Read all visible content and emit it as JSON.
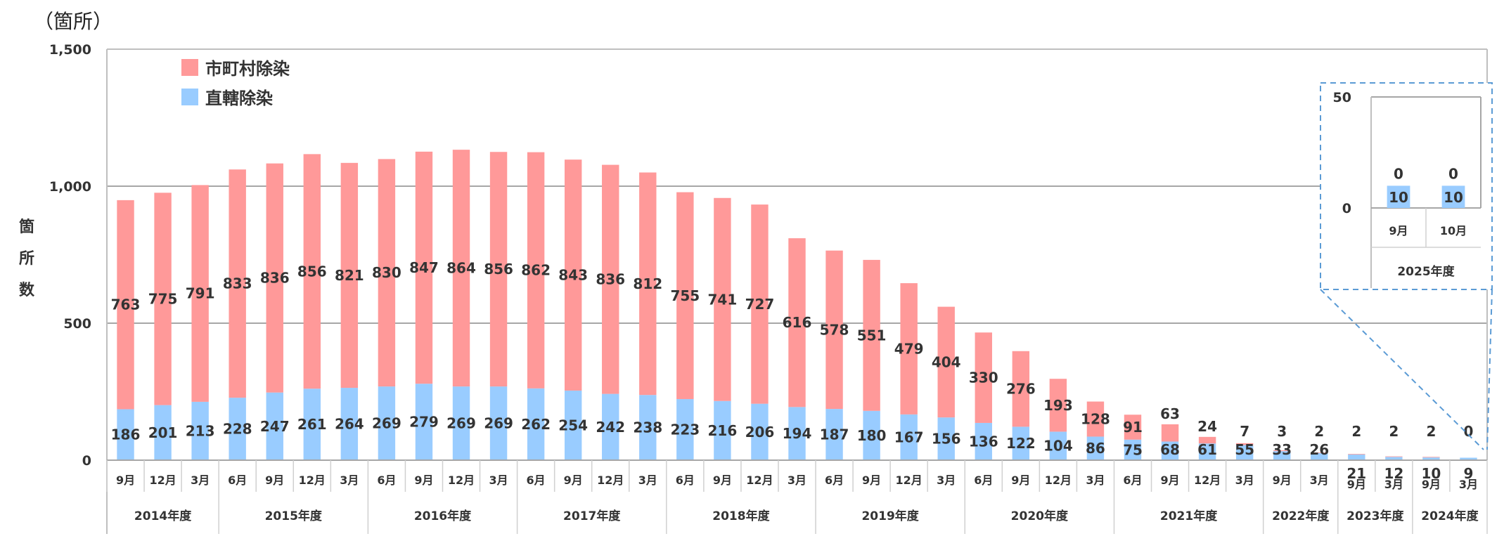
{
  "chart_data": {
    "type": "bar",
    "stacked": true,
    "unit": "（箇所）",
    "ylabel": [
      "箇",
      "所",
      "数"
    ],
    "ylim": [
      0,
      1500
    ],
    "yticks": [
      "0",
      "500",
      "1,000",
      "1,500"
    ],
    "grid": true,
    "legend": "top-left",
    "categories": [
      "9月",
      "12月",
      "3月",
      "6月",
      "9月",
      "12月",
      "3月",
      "6月",
      "9月",
      "12月",
      "3月",
      "6月",
      "9月",
      "12月",
      "3月",
      "6月",
      "9月",
      "12月",
      "3月",
      "6月",
      "9月",
      "12月",
      "3月",
      "6月",
      "9月",
      "12月",
      "3月",
      "6月",
      "9月",
      "12月",
      "3月",
      "9月",
      "3月",
      "9月",
      "3月",
      "9月",
      "3月"
    ],
    "groups": [
      {
        "label": "2014年度",
        "count": 3
      },
      {
        "label": "2015年度",
        "count": 4
      },
      {
        "label": "2016年度",
        "count": 4
      },
      {
        "label": "2017年度",
        "count": 4
      },
      {
        "label": "2018年度",
        "count": 4
      },
      {
        "label": "2019年度",
        "count": 4
      },
      {
        "label": "2020年度",
        "count": 4
      },
      {
        "label": "2021年度",
        "count": 4
      },
      {
        "label": "2022年度",
        "count": 2
      },
      {
        "label": "2023年度",
        "count": 2
      },
      {
        "label": "2024年度",
        "count": 2
      }
    ],
    "series": [
      {
        "name": "直轄除染",
        "color": "#99CCFF",
        "values": [
          186,
          201,
          213,
          228,
          247,
          261,
          264,
          269,
          279,
          269,
          269,
          262,
          254,
          242,
          238,
          223,
          216,
          206,
          194,
          187,
          180,
          167,
          156,
          136,
          122,
          104,
          86,
          75,
          68,
          61,
          55,
          33,
          26,
          21,
          12,
          10,
          9
        ]
      },
      {
        "name": "市町村除染",
        "color": "#FF9999",
        "values": [
          763,
          775,
          791,
          833,
          836,
          856,
          821,
          830,
          847,
          864,
          856,
          862,
          843,
          836,
          812,
          755,
          741,
          727,
          616,
          578,
          551,
          479,
          404,
          330,
          276,
          193,
          128,
          91,
          63,
          24,
          7,
          3,
          2,
          2,
          2,
          2,
          0
        ]
      }
    ],
    "inset": {
      "title": "2025年度",
      "ylim": [
        0,
        50
      ],
      "yticks": [
        "0",
        "50"
      ],
      "categories": [
        "9月",
        "10月"
      ],
      "series": [
        {
          "name": "直轄除染",
          "values": [
            10,
            10
          ]
        },
        {
          "name": "市町村除染",
          "values": [
            0,
            0
          ]
        }
      ]
    }
  }
}
